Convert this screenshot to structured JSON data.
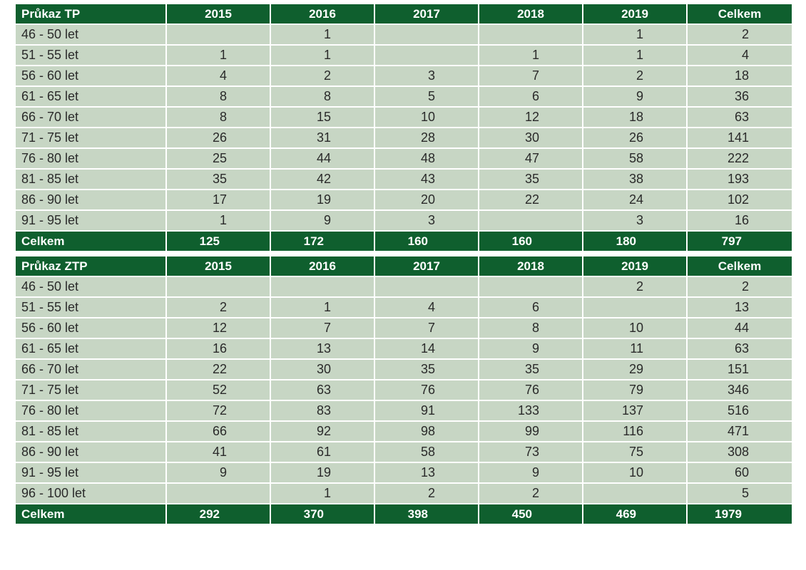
{
  "tables": [
    {
      "header": [
        "Průkaz TP",
        "2015",
        "2016",
        "2017",
        "2018",
        "2019",
        "Celkem"
      ],
      "rows": [
        [
          "46 - 50 let",
          "",
          "1",
          "",
          "",
          "1",
          "2"
        ],
        [
          "51 - 55 let",
          "1",
          "1",
          "",
          "1",
          "1",
          "4"
        ],
        [
          "56 - 60 let",
          "4",
          "2",
          "3",
          "7",
          "2",
          "18"
        ],
        [
          "61 - 65 let",
          "8",
          "8",
          "5",
          "6",
          "9",
          "36"
        ],
        [
          "66 - 70 let",
          "8",
          "15",
          "10",
          "12",
          "18",
          "63"
        ],
        [
          "71 - 75 let",
          "26",
          "31",
          "28",
          "30",
          "26",
          "141"
        ],
        [
          "76 - 80 let",
          "25",
          "44",
          "48",
          "47",
          "58",
          "222"
        ],
        [
          "81 - 85 let",
          "35",
          "42",
          "43",
          "35",
          "38",
          "193"
        ],
        [
          "86 - 90 let",
          "17",
          "19",
          "20",
          "22",
          "24",
          "102"
        ],
        [
          "91 - 95 let",
          "1",
          "9",
          "3",
          "",
          "3",
          "16"
        ]
      ],
      "footer": [
        "Celkem",
        "125",
        "172",
        "160",
        "160",
        "180",
        "797"
      ]
    },
    {
      "header": [
        "Průkaz ZTP",
        "2015",
        "2016",
        "2017",
        "2018",
        "2019",
        "Celkem"
      ],
      "rows": [
        [
          "46 - 50 let",
          "",
          "",
          "",
          "",
          "2",
          "2"
        ],
        [
          "51 - 55 let",
          "2",
          "1",
          "4",
          "6",
          "",
          "13"
        ],
        [
          "56 - 60 let",
          "12",
          "7",
          "7",
          "8",
          "10",
          "44"
        ],
        [
          "61 - 65 let",
          "16",
          "13",
          "14",
          "9",
          "11",
          "63"
        ],
        [
          "66 - 70 let",
          "22",
          "30",
          "35",
          "35",
          "29",
          "151"
        ],
        [
          "71 - 75 let",
          "52",
          "63",
          "76",
          "76",
          "79",
          "346"
        ],
        [
          "76 - 80 let",
          "72",
          "83",
          "91",
          "133",
          "137",
          "516"
        ],
        [
          "81 - 85 let",
          "66",
          "92",
          "98",
          "99",
          "116",
          "471"
        ],
        [
          "86 - 90 let",
          "41",
          "61",
          "58",
          "73",
          "75",
          "308"
        ],
        [
          "91 - 95 let",
          "9",
          "19",
          "13",
          "9",
          "10",
          "60"
        ],
        [
          "96 - 100 let",
          "",
          "1",
          "2",
          "2",
          "",
          "5"
        ]
      ],
      "footer": [
        "Celkem",
        "292",
        "370",
        "398",
        "450",
        "469",
        "1979"
      ]
    }
  ]
}
